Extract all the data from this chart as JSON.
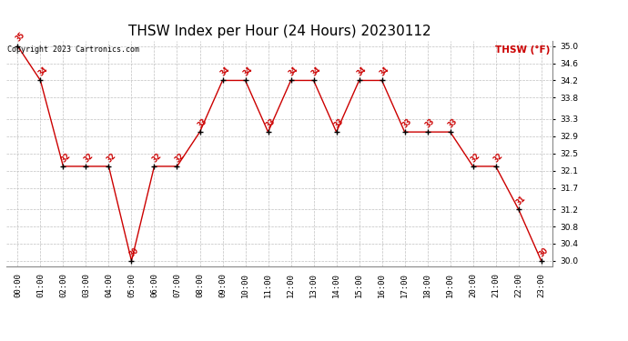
{
  "title": "THSW Index per Hour (24 Hours) 20230112",
  "copyright": "Copyright 2023 Cartronics.com",
  "legend_label": "THSW (°F)",
  "hours": [
    0,
    1,
    2,
    3,
    4,
    5,
    6,
    7,
    8,
    9,
    10,
    11,
    12,
    13,
    14,
    15,
    16,
    17,
    18,
    19,
    20,
    21,
    22,
    23
  ],
  "hour_labels": [
    "00:00",
    "01:00",
    "02:00",
    "03:00",
    "04:00",
    "05:00",
    "06:00",
    "07:00",
    "08:00",
    "09:00",
    "10:00",
    "11:00",
    "12:00",
    "13:00",
    "14:00",
    "15:00",
    "16:00",
    "17:00",
    "18:00",
    "19:00",
    "20:00",
    "21:00",
    "22:00",
    "23:00"
  ],
  "values": [
    35.0,
    34.2,
    32.2,
    32.2,
    32.2,
    30.0,
    32.2,
    32.2,
    33.0,
    34.2,
    34.2,
    33.0,
    34.2,
    34.2,
    33.0,
    34.2,
    34.2,
    33.0,
    33.0,
    33.0,
    32.2,
    32.2,
    31.2,
    30.0
  ],
  "data_labels": [
    "35",
    "34",
    "32",
    "32",
    "32",
    "30",
    "32",
    "32",
    "33",
    "34",
    "34",
    "33",
    "34",
    "34",
    "33",
    "34",
    "34",
    "33",
    "33",
    "33",
    "32",
    "32",
    "31",
    "30"
  ],
  "line_color": "#cc0000",
  "marker_color": "#000000",
  "label_color": "#cc0000",
  "title_color": "#000000",
  "copyright_color": "#000000",
  "legend_color": "#cc0000",
  "bg_color": "#ffffff",
  "grid_color": "#c0c0c0",
  "ylim_min": 29.88,
  "ylim_max": 35.12,
  "yticks": [
    30.0,
    30.4,
    30.8,
    31.2,
    31.7,
    32.1,
    32.5,
    32.9,
    33.3,
    33.8,
    34.2,
    34.6,
    35.0
  ],
  "title_fontsize": 11,
  "label_fontsize": 5.5,
  "copyright_fontsize": 6,
  "legend_fontsize": 7.5,
  "tick_fontsize": 6.5
}
